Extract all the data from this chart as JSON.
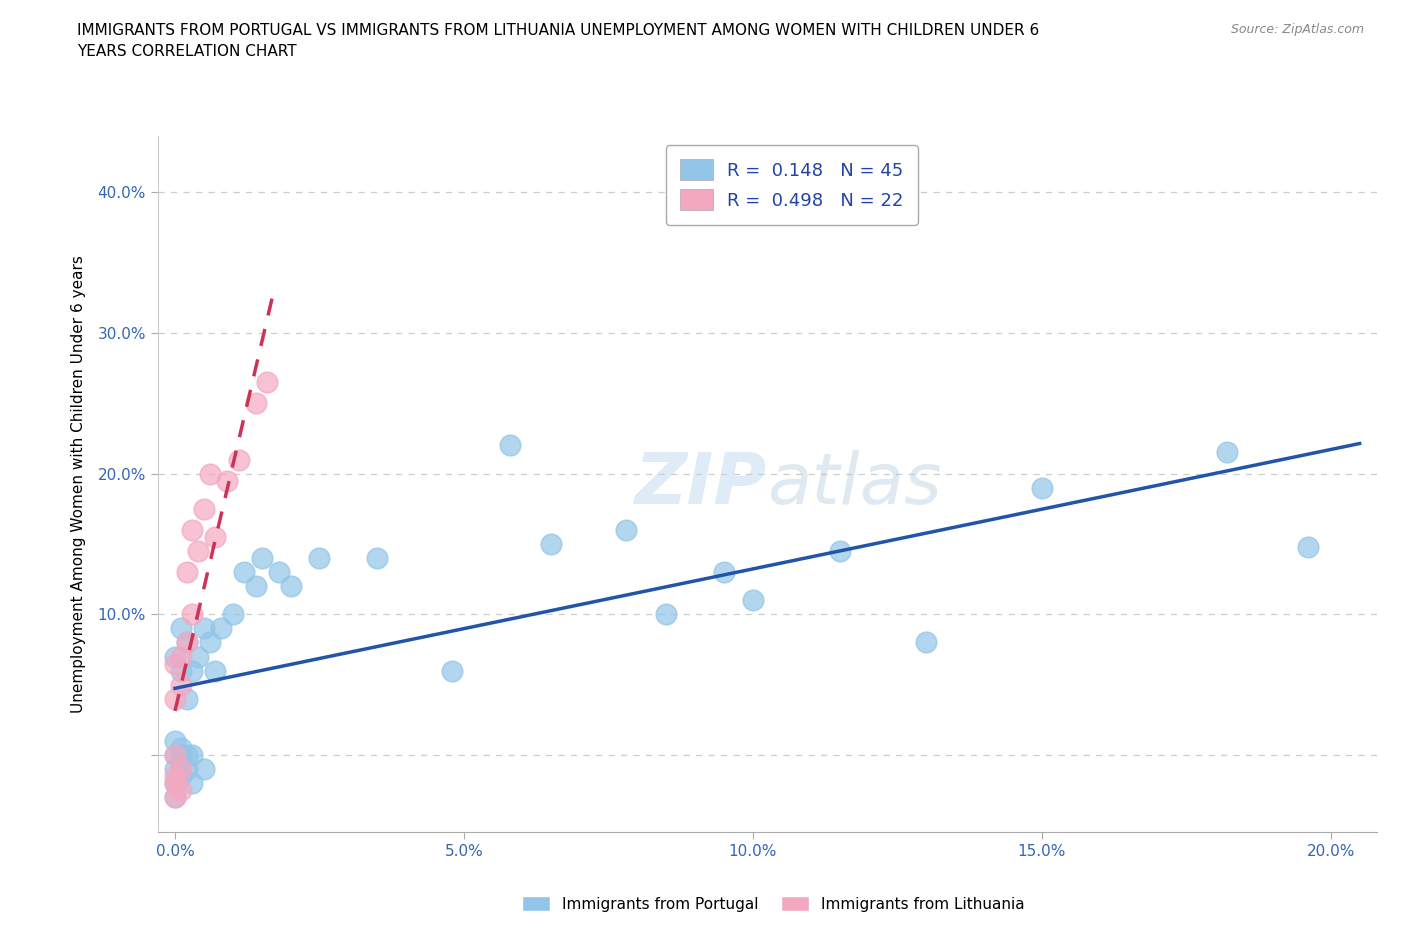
{
  "title": "IMMIGRANTS FROM PORTUGAL VS IMMIGRANTS FROM LITHUANIA UNEMPLOYMENT AMONG WOMEN WITH CHILDREN UNDER 6\nYEARS CORRELATION CHART",
  "source": "Source: ZipAtlas.com",
  "ylabel": "Unemployment Among Women with Children Under 6 years",
  "blue_color": "#92C5E8",
  "pink_color": "#F4A8C0",
  "blue_line_color": "#2255AA",
  "pink_line_color": "#CC3355",
  "grid_color": "#cccccc",
  "portugal_x": [
    0.0,
    0.0,
    0.0,
    0.0,
    0.0,
    0.0,
    0.001,
    0.001,
    0.001,
    0.001,
    0.001,
    0.001,
    0.002,
    0.002,
    0.002,
    0.002,
    0.003,
    0.003,
    0.003,
    0.004,
    0.005,
    0.005,
    0.006,
    0.007,
    0.008,
    0.01,
    0.012,
    0.014,
    0.015,
    0.018,
    0.02,
    0.025,
    0.035,
    0.048,
    0.058,
    0.065,
    0.078,
    0.085,
    0.095,
    0.1,
    0.115,
    0.13,
    0.15,
    0.182,
    0.196
  ],
  "portugal_y": [
    0.0,
    -0.01,
    -0.02,
    -0.03,
    0.01,
    0.07,
    -0.005,
    0.0,
    -0.015,
    0.005,
    0.06,
    0.09,
    -0.01,
    0.0,
    0.04,
    0.08,
    -0.02,
    0.0,
    0.06,
    0.07,
    -0.01,
    0.09,
    0.08,
    0.06,
    0.09,
    0.1,
    0.13,
    0.12,
    0.14,
    0.13,
    0.12,
    0.14,
    0.14,
    0.06,
    0.22,
    0.15,
    0.16,
    0.1,
    0.13,
    0.11,
    0.145,
    0.08,
    0.19,
    0.215,
    0.148
  ],
  "lithuania_x": [
    0.0,
    0.0,
    0.0,
    0.0,
    0.0,
    0.0,
    0.001,
    0.001,
    0.001,
    0.001,
    0.002,
    0.002,
    0.003,
    0.003,
    0.004,
    0.005,
    0.006,
    0.007,
    0.009,
    0.011,
    0.014,
    0.016
  ],
  "lithuania_y": [
    -0.02,
    -0.03,
    -0.015,
    0.0,
    0.04,
    0.065,
    -0.025,
    -0.01,
    0.05,
    0.07,
    0.08,
    0.13,
    0.1,
    0.16,
    0.145,
    0.175,
    0.2,
    0.155,
    0.195,
    0.21,
    0.25,
    0.265
  ],
  "xlim": [
    -0.003,
    0.208
  ],
  "ylim": [
    -0.055,
    0.44
  ],
  "xticks": [
    0.0,
    0.05,
    0.1,
    0.15,
    0.2
  ],
  "yticks": [
    0.0,
    0.1,
    0.2,
    0.3,
    0.4
  ],
  "xtick_labels": [
    "0.0%",
    "5.0%",
    "10.0%",
    "15.0%",
    "20.0%"
  ],
  "ytick_labels": [
    "",
    "10.0%",
    "20.0%",
    "30.0%",
    "40.0%"
  ]
}
